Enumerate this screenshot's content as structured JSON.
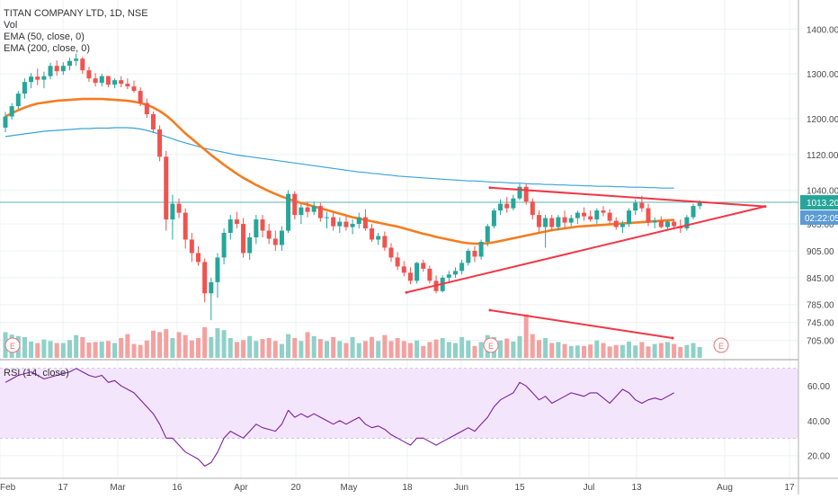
{
  "legend": {
    "title": "TITAN COMPANY LTD, 1D, NSE",
    "vol": "Vol",
    "ema50": "EMA (50, close, 0)",
    "ema200": "EMA (200, close, 0)",
    "rsi": "RSI (14, close)"
  },
  "price_axis": {
    "ticks": [
      "1400.00",
      "1300.00",
      "1200.00",
      "1120.00",
      "1040.00",
      "965.00",
      "905.00",
      "845.00",
      "785.00",
      "745.00",
      "705.00"
    ],
    "last_price": "1013.20",
    "countdown": "02:22:05"
  },
  "rsi_axis": {
    "ticks": [
      "60.00",
      "40.00",
      "20.00"
    ]
  },
  "time_axis": {
    "labels": [
      "Feb",
      "17",
      "Mar",
      "16",
      "Apr",
      "20",
      "May",
      "18",
      "Jun",
      "15",
      "Jul",
      "13",
      "Aug",
      "17"
    ]
  },
  "earnings_marker": "E",
  "colors": {
    "up": "#26a69a",
    "down": "#ef5350",
    "ema50": "#f57c1f",
    "ema200": "#3aa3d8",
    "trend": "#f23645",
    "rsi": "#7b1fa2",
    "rsi_band": "#f3e5fb",
    "last_price_bg": "#26a69a",
    "countdown_bg": "#5b9bd5"
  },
  "chart_data": {
    "type": "candlestick",
    "title": "TITAN COMPANY LTD, 1D, NSE",
    "ylim": [
      672,
      1455
    ],
    "rsi_ylim": [
      8,
      74
    ],
    "candles": [
      [
        1180,
        1215,
        1170,
        1205,
        52
      ],
      [
        1205,
        1235,
        1198,
        1228,
        47
      ],
      [
        1228,
        1262,
        1222,
        1256,
        44
      ],
      [
        1256,
        1290,
        1245,
        1282,
        42
      ],
      [
        1282,
        1302,
        1268,
        1294,
        33
      ],
      [
        1294,
        1312,
        1275,
        1287,
        30
      ],
      [
        1287,
        1305,
        1268,
        1295,
        37
      ],
      [
        1295,
        1325,
        1288,
        1318,
        34
      ],
      [
        1318,
        1330,
        1296,
        1306,
        30
      ],
      [
        1306,
        1326,
        1298,
        1318,
        30
      ],
      [
        1318,
        1336,
        1308,
        1329,
        36
      ],
      [
        1329,
        1345,
        1318,
        1334,
        46
      ],
      [
        1334,
        1338,
        1300,
        1308,
        42
      ],
      [
        1308,
        1316,
        1282,
        1290,
        31
      ],
      [
        1290,
        1302,
        1272,
        1280,
        32
      ],
      [
        1280,
        1300,
        1272,
        1295,
        33
      ],
      [
        1295,
        1296,
        1270,
        1276,
        34
      ],
      [
        1276,
        1290,
        1268,
        1286,
        30
      ],
      [
        1286,
        1295,
        1270,
        1278,
        40
      ],
      [
        1278,
        1290,
        1266,
        1272,
        48
      ],
      [
        1272,
        1285,
        1258,
        1262,
        28
      ],
      [
        1262,
        1270,
        1228,
        1235,
        26
      ],
      [
        1235,
        1245,
        1202,
        1210,
        35
      ],
      [
        1210,
        1216,
        1168,
        1176,
        55
      ],
      [
        1176,
        1185,
        1105,
        1115,
        52
      ],
      [
        1115,
        1128,
        950,
        975,
        58
      ],
      [
        975,
        1030,
        930,
        1010,
        40
      ],
      [
        1010,
        1022,
        978,
        990,
        52
      ],
      [
        990,
        1000,
        910,
        930,
        46
      ],
      [
        930,
        945,
        880,
        900,
        35
      ],
      [
        900,
        915,
        872,
        880,
        40
      ],
      [
        880,
        888,
        790,
        810,
        62
      ],
      [
        810,
        845,
        750,
        835,
        42
      ],
      [
        835,
        900,
        800,
        890,
        60
      ],
      [
        890,
        955,
        875,
        945,
        56
      ],
      [
        945,
        985,
        930,
        975,
        40
      ],
      [
        975,
        992,
        955,
        965,
        32
      ],
      [
        965,
        978,
        890,
        900,
        36
      ],
      [
        900,
        945,
        885,
        935,
        44
      ],
      [
        935,
        985,
        920,
        975,
        34
      ],
      [
        975,
        985,
        935,
        950,
        38
      ],
      [
        950,
        965,
        920,
        932,
        40
      ],
      [
        932,
        950,
        905,
        918,
        34
      ],
      [
        918,
        960,
        905,
        950,
        28
      ],
      [
        950,
        1040,
        945,
        1032,
        48
      ],
      [
        1032,
        1038,
        975,
        985,
        40
      ],
      [
        985,
        1010,
        965,
        1002,
        34
      ],
      [
        1002,
        1015,
        980,
        992,
        52
      ],
      [
        992,
        1015,
        985,
        1005,
        44
      ],
      [
        1005,
        1012,
        970,
        978,
        38
      ],
      [
        978,
        992,
        955,
        980,
        34
      ],
      [
        980,
        992,
        950,
        960,
        42
      ],
      [
        960,
        980,
        945,
        970,
        34
      ],
      [
        970,
        982,
        950,
        958,
        30
      ],
      [
        958,
        975,
        942,
        965,
        42
      ],
      [
        965,
        990,
        955,
        980,
        30
      ],
      [
        980,
        998,
        950,
        955,
        34
      ],
      [
        955,
        965,
        925,
        930,
        42
      ],
      [
        930,
        945,
        918,
        938,
        34
      ],
      [
        938,
        948,
        905,
        912,
        46
      ],
      [
        912,
        922,
        880,
        890,
        34
      ],
      [
        890,
        902,
        862,
        870,
        40
      ],
      [
        870,
        882,
        848,
        856,
        34
      ],
      [
        856,
        868,
        830,
        838,
        30
      ],
      [
        838,
        880,
        832,
        878,
        35
      ],
      [
        878,
        885,
        858,
        865,
        24
      ],
      [
        865,
        872,
        832,
        838,
        32
      ],
      [
        838,
        850,
        810,
        815,
        37
      ],
      [
        815,
        850,
        812,
        845,
        40
      ],
      [
        845,
        860,
        835,
        852,
        32
      ],
      [
        852,
        868,
        845,
        860,
        30
      ],
      [
        860,
        885,
        852,
        878,
        42
      ],
      [
        878,
        910,
        872,
        905,
        35
      ],
      [
        905,
        915,
        880,
        892,
        24
      ],
      [
        892,
        930,
        885,
        925,
        32
      ],
      [
        925,
        965,
        915,
        960,
        46
      ],
      [
        960,
        1000,
        955,
        995,
        42
      ],
      [
        995,
        1020,
        985,
        1010,
        35
      ],
      [
        1010,
        1025,
        990,
        1000,
        39
      ],
      [
        1000,
        1030,
        995,
        1022,
        33
      ],
      [
        1022,
        1055,
        1018,
        1048,
        44
      ],
      [
        1048,
        1055,
        1008,
        1015,
        88
      ],
      [
        1015,
        1022,
        975,
        985,
        48
      ],
      [
        985,
        995,
        945,
        958,
        36
      ],
      [
        958,
        985,
        912,
        978,
        40
      ],
      [
        978,
        985,
        950,
        958,
        30
      ],
      [
        958,
        985,
        950,
        980,
        32
      ],
      [
        980,
        995,
        955,
        968,
        28
      ],
      [
        968,
        985,
        960,
        978,
        24
      ],
      [
        978,
        995,
        965,
        990,
        25
      ],
      [
        990,
        1002,
        972,
        982,
        24
      ],
      [
        982,
        995,
        970,
        975,
        27
      ],
      [
        975,
        1000,
        965,
        995,
        35
      ],
      [
        995,
        1005,
        982,
        990,
        30
      ],
      [
        990,
        998,
        965,
        972,
        23
      ],
      [
        972,
        980,
        952,
        958,
        26
      ],
      [
        958,
        972,
        945,
        965,
        26
      ],
      [
        965,
        1000,
        958,
        995,
        33
      ],
      [
        995,
        1020,
        985,
        1012,
        25
      ],
      [
        1012,
        1028,
        992,
        1000,
        32
      ],
      [
        1000,
        1010,
        960,
        968,
        23
      ],
      [
        968,
        980,
        955,
        972,
        28
      ],
      [
        972,
        982,
        955,
        958,
        30
      ],
      [
        958,
        975,
        950,
        970,
        32
      ],
      [
        970,
        975,
        952,
        960,
        28
      ],
      [
        960,
        975,
        945,
        955,
        22
      ],
      [
        955,
        985,
        950,
        980,
        26
      ],
      [
        980,
        1010,
        975,
        1005,
        30
      ],
      [
        1005,
        1018,
        998,
        1013,
        22
      ]
    ],
    "ema50": [
      1205,
      1212,
      1219,
      1225,
      1230,
      1234,
      1236,
      1238,
      1240,
      1241,
      1242,
      1243,
      1244,
      1244,
      1244,
      1244,
      1243,
      1242,
      1241,
      1240,
      1238,
      1235,
      1231,
      1225,
      1217,
      1207,
      1195,
      1181,
      1167,
      1155,
      1143,
      1131,
      1119,
      1108,
      1097,
      1087,
      1077,
      1068,
      1060,
      1052,
      1045,
      1038,
      1032,
      1026,
      1021,
      1016,
      1012,
      1008,
      1004,
      1000,
      996,
      992,
      988,
      984,
      980,
      977,
      974,
      971,
      968,
      965,
      962,
      959,
      955,
      951,
      947,
      943,
      940,
      936,
      933,
      930,
      927,
      924,
      922,
      921,
      921,
      922,
      924,
      927,
      930,
      933,
      936,
      939,
      942,
      945,
      948,
      951,
      953,
      955,
      957,
      959,
      960,
      961,
      962,
      963,
      964,
      965,
      966,
      967,
      968,
      969,
      970,
      971,
      972,
      973,
      974
    ],
    "ema200": [
      1160,
      1162,
      1164,
      1166,
      1168,
      1170,
      1172,
      1173,
      1174,
      1175,
      1176,
      1177,
      1178,
      1178,
      1179,
      1179,
      1179,
      1180,
      1180,
      1180,
      1179,
      1177,
      1174,
      1170,
      1165,
      1160,
      1155,
      1150,
      1146,
      1142,
      1138,
      1134,
      1131,
      1128,
      1125,
      1122,
      1119,
      1117,
      1115,
      1113,
      1111,
      1109,
      1107,
      1105,
      1103,
      1101,
      1099,
      1097,
      1095,
      1093,
      1091,
      1089,
      1087,
      1085,
      1083,
      1081,
      1080,
      1078,
      1077,
      1075,
      1074,
      1072,
      1071,
      1070,
      1069,
      1068,
      1067,
      1066,
      1065,
      1064,
      1063,
      1062,
      1061,
      1061,
      1060,
      1059,
      1058,
      1058,
      1057,
      1056,
      1056,
      1055,
      1054,
      1054,
      1053,
      1053,
      1052,
      1052,
      1051,
      1051,
      1050,
      1050,
      1049,
      1049,
      1049,
      1048,
      1048,
      1047,
      1047,
      1047,
      1046,
      1046,
      1045,
      1045,
      1045
    ],
    "rsi": [
      62,
      64,
      66,
      67,
      68,
      66,
      64,
      65,
      66,
      67,
      68,
      70,
      68,
      66,
      65,
      66,
      62,
      63,
      60,
      58,
      56,
      52,
      48,
      44,
      38,
      30,
      30,
      26,
      22,
      20,
      18,
      14,
      16,
      22,
      30,
      34,
      32,
      30,
      34,
      38,
      36,
      35,
      34,
      38,
      46,
      42,
      44,
      42,
      44,
      42,
      40,
      38,
      40,
      38,
      40,
      42,
      38,
      36,
      37,
      35,
      32,
      30,
      28,
      26,
      30,
      30,
      28,
      26,
      28,
      30,
      32,
      34,
      36,
      34,
      38,
      42,
      48,
      52,
      54,
      56,
      62,
      60,
      56,
      52,
      54,
      50,
      52,
      54,
      56,
      55,
      54,
      56,
      56,
      53,
      50,
      54,
      58,
      56,
      52,
      50,
      52,
      53,
      52,
      54,
      56
    ],
    "volume_note": "last value of each candle is relative volume",
    "patterns": {
      "upper_trendline": [
        [
          1046,
          1040
        ],
        [
          1145,
          1004
        ]
      ],
      "lower_trendline": [
        [
          810,
          790
        ],
        [
          1145,
          1004
        ]
      ],
      "volume_trendline": [
        [
          160,
          98
        ],
        [
          190,
          82
        ]
      ]
    }
  }
}
